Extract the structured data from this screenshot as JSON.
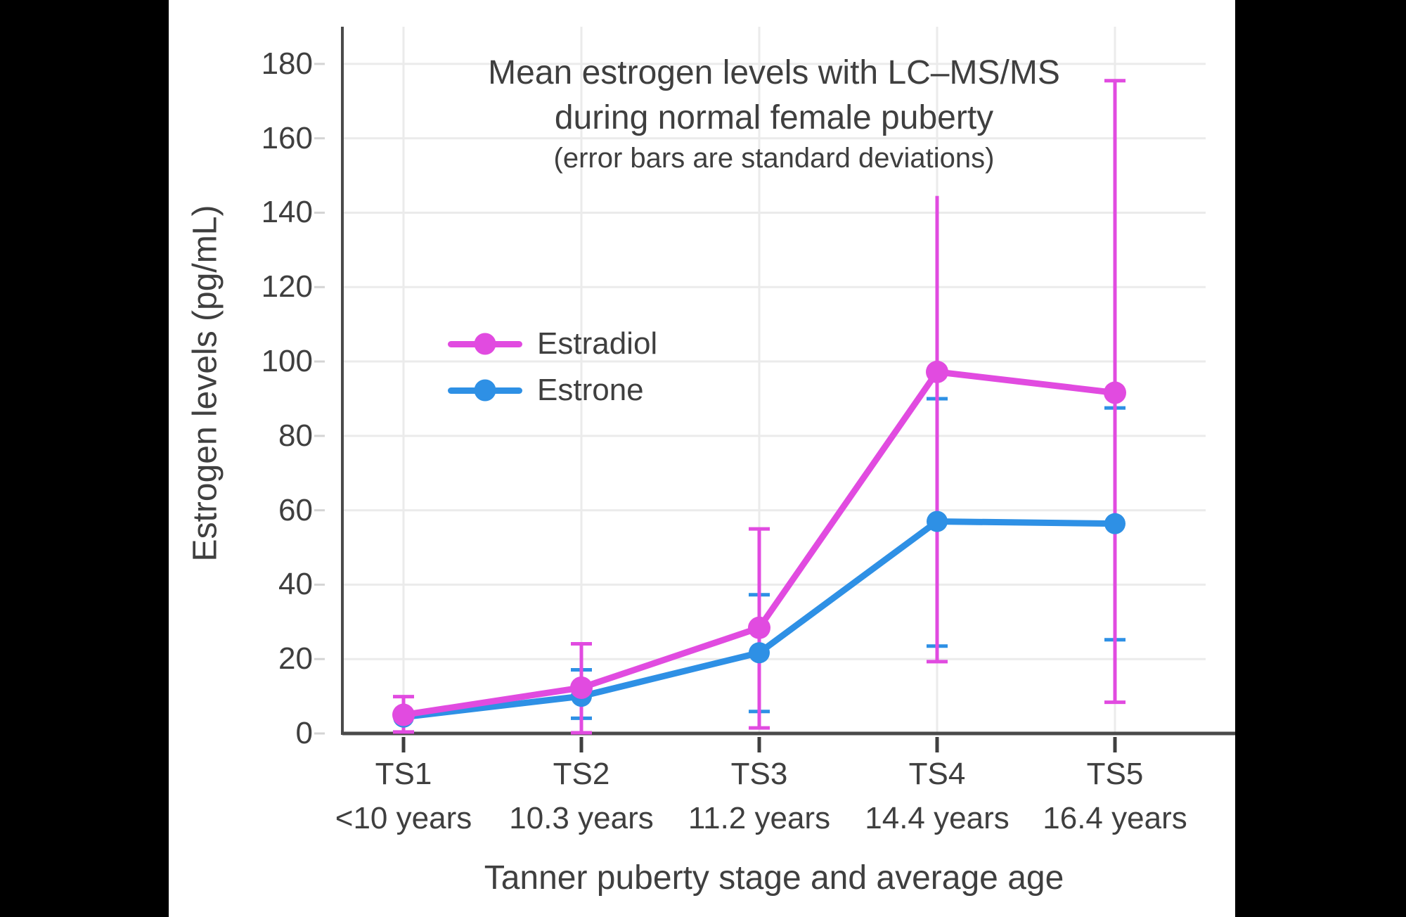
{
  "window": {
    "background": "#000000",
    "panel_background": "#FFFFFF"
  },
  "chart_data": {
    "type": "line",
    "title_line1": "Mean estrogen levels with LC–MS/MS",
    "title_line2": "during normal female puberty",
    "subtitle": "(error bars are standard deviations)",
    "xlabel": "Tanner puberty stage and average age",
    "ylabel": "Estrogen levels (pg/mL)",
    "x": [
      "TS1",
      "TS2",
      "TS3",
      "TS4",
      "TS5"
    ],
    "x_sub": [
      "<10 years",
      "10.3 years",
      "11.2 years",
      "14.4 years",
      "16.4 years"
    ],
    "y_ticks": [
      0,
      20,
      40,
      60,
      80,
      100,
      120,
      140,
      160,
      180
    ],
    "ylim": [
      0,
      190
    ],
    "grid": true,
    "legend": {
      "position": "inside-upper-left",
      "entries": [
        "Estradiol",
        "Estrone"
      ]
    },
    "series": [
      {
        "name": "Estradiol",
        "color": "#E14BE0",
        "values": [
          5,
          12.3,
          28.4,
          97.2,
          91.6
        ],
        "whisker_top": [
          9.9,
          24.1,
          55,
          144.5,
          175.5
        ],
        "whisker_bottom": [
          0.4,
          0.2,
          1.5,
          19.3,
          8.4
        ],
        "top_caps": [
          true,
          true,
          true,
          false,
          true
        ],
        "bottom_caps": [
          true,
          true,
          true,
          true,
          true
        ]
      },
      {
        "name": "Estrone",
        "color": "#2E90E5",
        "values": [
          4.4,
          10,
          21.7,
          57,
          56.4
        ],
        "whisker_top": [
          null,
          17.1,
          37.3,
          90,
          87.5
        ],
        "whisker_bottom": [
          null,
          4.1,
          5.9,
          23.5,
          25.2
        ],
        "top_caps": [
          false,
          true,
          true,
          true,
          true
        ],
        "bottom_caps": [
          false,
          true,
          true,
          true,
          true
        ]
      }
    ],
    "colors": {
      "grid": "#EBEBEB",
      "axis": "#4A4A4A",
      "text": "#3F3F3F",
      "y_tick": "#D4D4D4",
      "x_tick": "#3F3F3F"
    }
  }
}
